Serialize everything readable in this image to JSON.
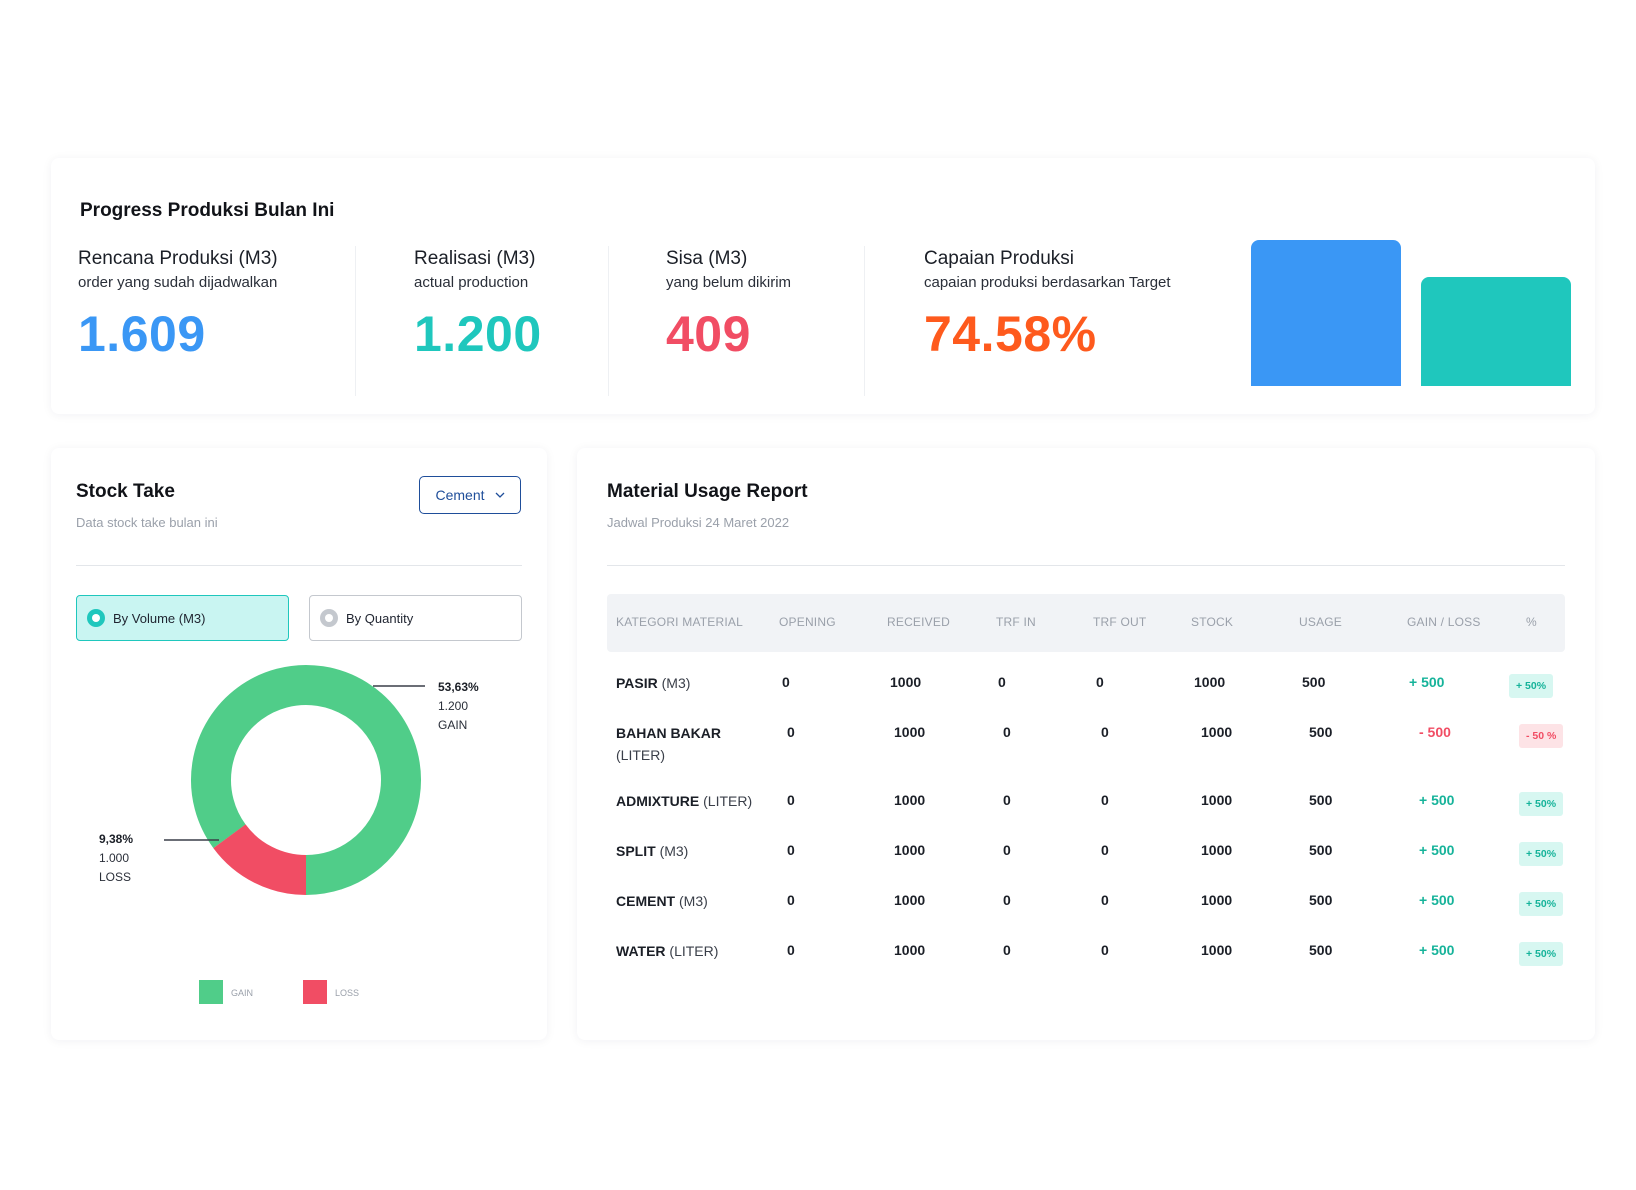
{
  "progress": {
    "title": "Progress Produksi Bulan Ini",
    "stats": [
      {
        "title": "Rencana Produksi (M3)",
        "subtitle": "order yang sudah dijadwalkan",
        "value": "1.609",
        "color": "#3a97f5"
      },
      {
        "title": "Realisasi (M3)",
        "subtitle": "actual production",
        "value": "1.200",
        "color": "#1fc7bd"
      },
      {
        "title": "Sisa (M3)",
        "subtitle": "yang belum dikirim",
        "value": "409",
        "color": "#f14d64"
      },
      {
        "title": "Capaian Produksi",
        "subtitle": "capaian produksi berdasarkan Target",
        "value": "74.58%",
        "color": "#fe5a1d"
      }
    ],
    "bars": [
      {
        "value": 1.609,
        "color": "#3a97f5"
      },
      {
        "value": 1.2,
        "color": "#1fc7bd"
      }
    ]
  },
  "stock": {
    "title": "Stock Take",
    "subtitle": "Data stock take bulan ini",
    "dropdown": "Cement",
    "radio": [
      {
        "label": "By Volume (M3)",
        "selected": true
      },
      {
        "label": "By Quantity",
        "selected": false
      }
    ],
    "donut": {
      "gain": {
        "pct": "53,63%",
        "value": "1.200",
        "label": "GAIN",
        "share": 0.851,
        "color": "#50cd89"
      },
      "loss": {
        "pct": "9,38%",
        "value": "1.000",
        "label": "LOSS",
        "share": 0.149,
        "color": "#f14d64"
      }
    },
    "legend": [
      {
        "label": "GAIN",
        "color": "#50cd89"
      },
      {
        "label": "LOSS",
        "color": "#f14d64"
      }
    ]
  },
  "usage": {
    "title": "Material Usage Report",
    "subtitle": "Jadwal Produksi 24 Maret 2022",
    "headers": [
      "KATEGORI MATERIAL",
      "OPENING",
      "RECEIVED",
      "TRF IN",
      "TRF OUT",
      "STOCK",
      "USAGE",
      "GAIN / LOSS",
      "%"
    ],
    "rows": [
      {
        "name": "PASIR",
        "unit": "(M3)",
        "opening": "0",
        "received": "1000",
        "trf_in": "0",
        "trf_out": "0",
        "stock": "1000",
        "usage": "500",
        "gain_loss": "+ 500",
        "pct": "+ 50%",
        "positive": true
      },
      {
        "name": "BAHAN BAKAR",
        "unit": "(LITER)",
        "opening": "0",
        "received": "1000",
        "trf_in": "0",
        "trf_out": "0",
        "stock": "1000",
        "usage": "500",
        "gain_loss": "- 500",
        "pct": "- 50 %",
        "positive": false
      },
      {
        "name": "ADMIXTURE",
        "unit": "(LITER)",
        "opening": "0",
        "received": "1000",
        "trf_in": "0",
        "trf_out": "0",
        "stock": "1000",
        "usage": "500",
        "gain_loss": "+ 500",
        "pct": "+ 50%",
        "positive": true
      },
      {
        "name": "SPLIT",
        "unit": "(M3)",
        "opening": "0",
        "received": "1000",
        "trf_in": "0",
        "trf_out": "0",
        "stock": "1000",
        "usage": "500",
        "gain_loss": "+ 500",
        "pct": "+ 50%",
        "positive": true
      },
      {
        "name": "CEMENT",
        "unit": "(M3)",
        "opening": "0",
        "received": "1000",
        "trf_in": "0",
        "trf_out": "0",
        "stock": "1000",
        "usage": "500",
        "gain_loss": "+ 500",
        "pct": "+ 50%",
        "positive": true
      },
      {
        "name": "WATER",
        "unit": "(LITER)",
        "opening": "0",
        "received": "1000",
        "trf_in": "0",
        "trf_out": "0",
        "stock": "1000",
        "usage": "500",
        "gain_loss": "+ 500",
        "pct": "+ 50%",
        "positive": true
      }
    ],
    "colors": {
      "gain": "#16b39a",
      "loss": "#f14d64",
      "gain_bg": "#d7f7f1",
      "loss_bg": "#fde3e6"
    }
  }
}
